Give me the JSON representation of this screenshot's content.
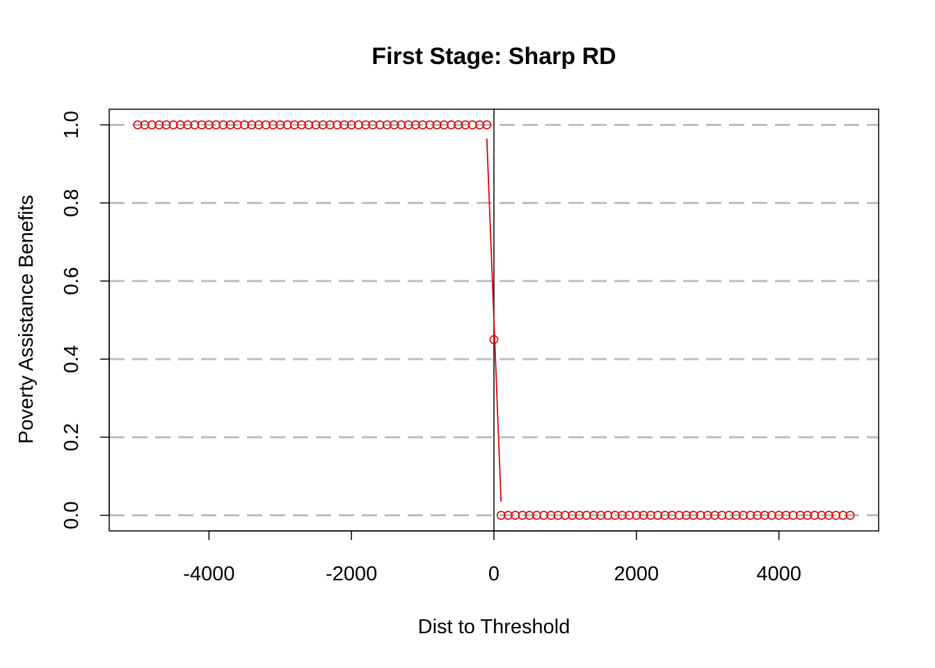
{
  "chart_data": {
    "type": "scatter",
    "title": "First Stage: Sharp RD",
    "xlabel": "Dist to Threshold",
    "ylabel": "Poverty Assistance Benefits",
    "xlim": [
      -5400,
      5400
    ],
    "ylim": [
      -0.04,
      1.04
    ],
    "x_ticks": [
      -4000,
      -2000,
      0,
      2000,
      4000
    ],
    "x_tick_labels": [
      "-4000",
      "-2000",
      "0",
      "2000",
      "4000"
    ],
    "y_ticks": [
      0.0,
      0.2,
      0.4,
      0.6,
      0.8,
      1.0
    ],
    "y_tick_labels": [
      "0.0",
      "0.2",
      "0.4",
      "0.6",
      "0.8",
      "1.0"
    ],
    "horizontal_grid_dashed": true,
    "cutoff_x": 0,
    "series": [
      {
        "kind": "binned-means",
        "color": "#e00000",
        "marker": "open-circle",
        "segments": [
          {
            "x_start": -5000,
            "x_end": -100,
            "step": 100,
            "y": 1.0
          },
          {
            "x_start": 0,
            "x_end": 0,
            "step": 100,
            "y": 0.45
          },
          {
            "x_start": 100,
            "x_end": 5000,
            "step": 100,
            "y": 0.0
          }
        ]
      },
      {
        "kind": "fitted-line",
        "color": "#e00000",
        "x": [
          -100,
          100
        ],
        "y": [
          0.965,
          0.035
        ]
      }
    ]
  }
}
